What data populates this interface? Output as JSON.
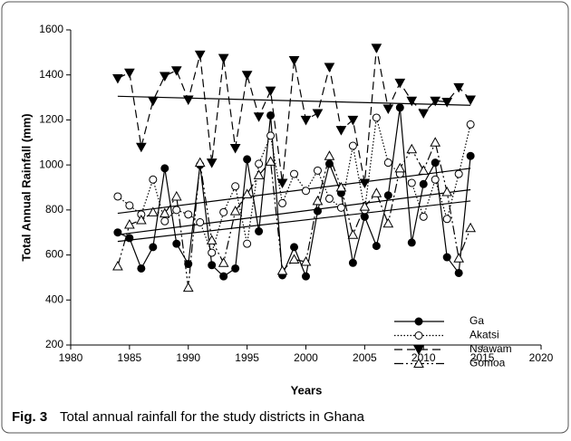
{
  "chart_data": {
    "type": "line",
    "xlabel": "Years",
    "ylabel": "Total Annual Rainfall (mm)",
    "caption_label": "Fig. 3",
    "caption": "Total annual rainfall for the study districts in Ghana",
    "x": [
      1984,
      1985,
      1986,
      1987,
      1988,
      1989,
      1990,
      1991,
      1992,
      1993,
      1994,
      1995,
      1996,
      1997,
      1998,
      1999,
      2000,
      2001,
      2002,
      2003,
      2004,
      2005,
      2006,
      2007,
      2008,
      2009,
      2010,
      2011,
      2012,
      2013,
      2014
    ],
    "xlim": [
      1980,
      2020
    ],
    "xticks": [
      1980,
      1985,
      1990,
      1995,
      2000,
      2005,
      2010,
      2015,
      2020
    ],
    "ylim": [
      200,
      1600
    ],
    "yticks": [
      200,
      400,
      600,
      800,
      1000,
      1200,
      1400,
      1600
    ],
    "legend": "lower right",
    "series": [
      {
        "name": "Ga",
        "color": "#000000",
        "marker": "circle-filled",
        "dash": "solid",
        "values": [
          700,
          675,
          540,
          635,
          985,
          650,
          560,
          1000,
          555,
          505,
          540,
          1025,
          705,
          1220,
          510,
          635,
          505,
          795,
          1005,
          875,
          565,
          770,
          640,
          865,
          1255,
          655,
          915,
          1010,
          590,
          520,
          1040
        ],
        "trend": [
          660,
          840
        ]
      },
      {
        "name": "Akatsi",
        "color": "#000000",
        "marker": "circle-open",
        "dash": "dotted",
        "values": [
          860,
          820,
          780,
          935,
          750,
          800,
          780,
          745,
          610,
          790,
          905,
          650,
          1005,
          1130,
          830,
          960,
          885,
          975,
          850,
          810,
          1085,
          800,
          1210,
          1010,
          960,
          920,
          770,
          935,
          760,
          960,
          1180
        ],
        "trend": [
          785,
          985
        ]
      },
      {
        "name": "Nsawam",
        "color": "#000000",
        "marker": "triangle-down-filled",
        "dash": "dashed",
        "values": [
          1385,
          1410,
          1080,
          1285,
          1395,
          1420,
          1290,
          1490,
          1010,
          1475,
          1075,
          1400,
          1215,
          1330,
          920,
          1465,
          1200,
          1230,
          1435,
          1155,
          1200,
          920,
          1520,
          1250,
          1365,
          1285,
          1230,
          1285,
          1280,
          1345,
          1290
        ],
        "trend": [
          1305,
          1265
        ]
      },
      {
        "name": "Gomoa",
        "color": "#000000",
        "marker": "triangle-up-open",
        "dash": "dash-dot-dot",
        "values": [
          550,
          735,
          755,
          790,
          785,
          860,
          455,
          1010,
          665,
          565,
          795,
          870,
          955,
          1015,
          530,
          580,
          570,
          840,
          1040,
          900,
          690,
          815,
          875,
          740,
          985,
          1070,
          975,
          1100,
          880,
          585,
          720
        ],
        "trend": [
          690,
          890
        ]
      }
    ]
  }
}
